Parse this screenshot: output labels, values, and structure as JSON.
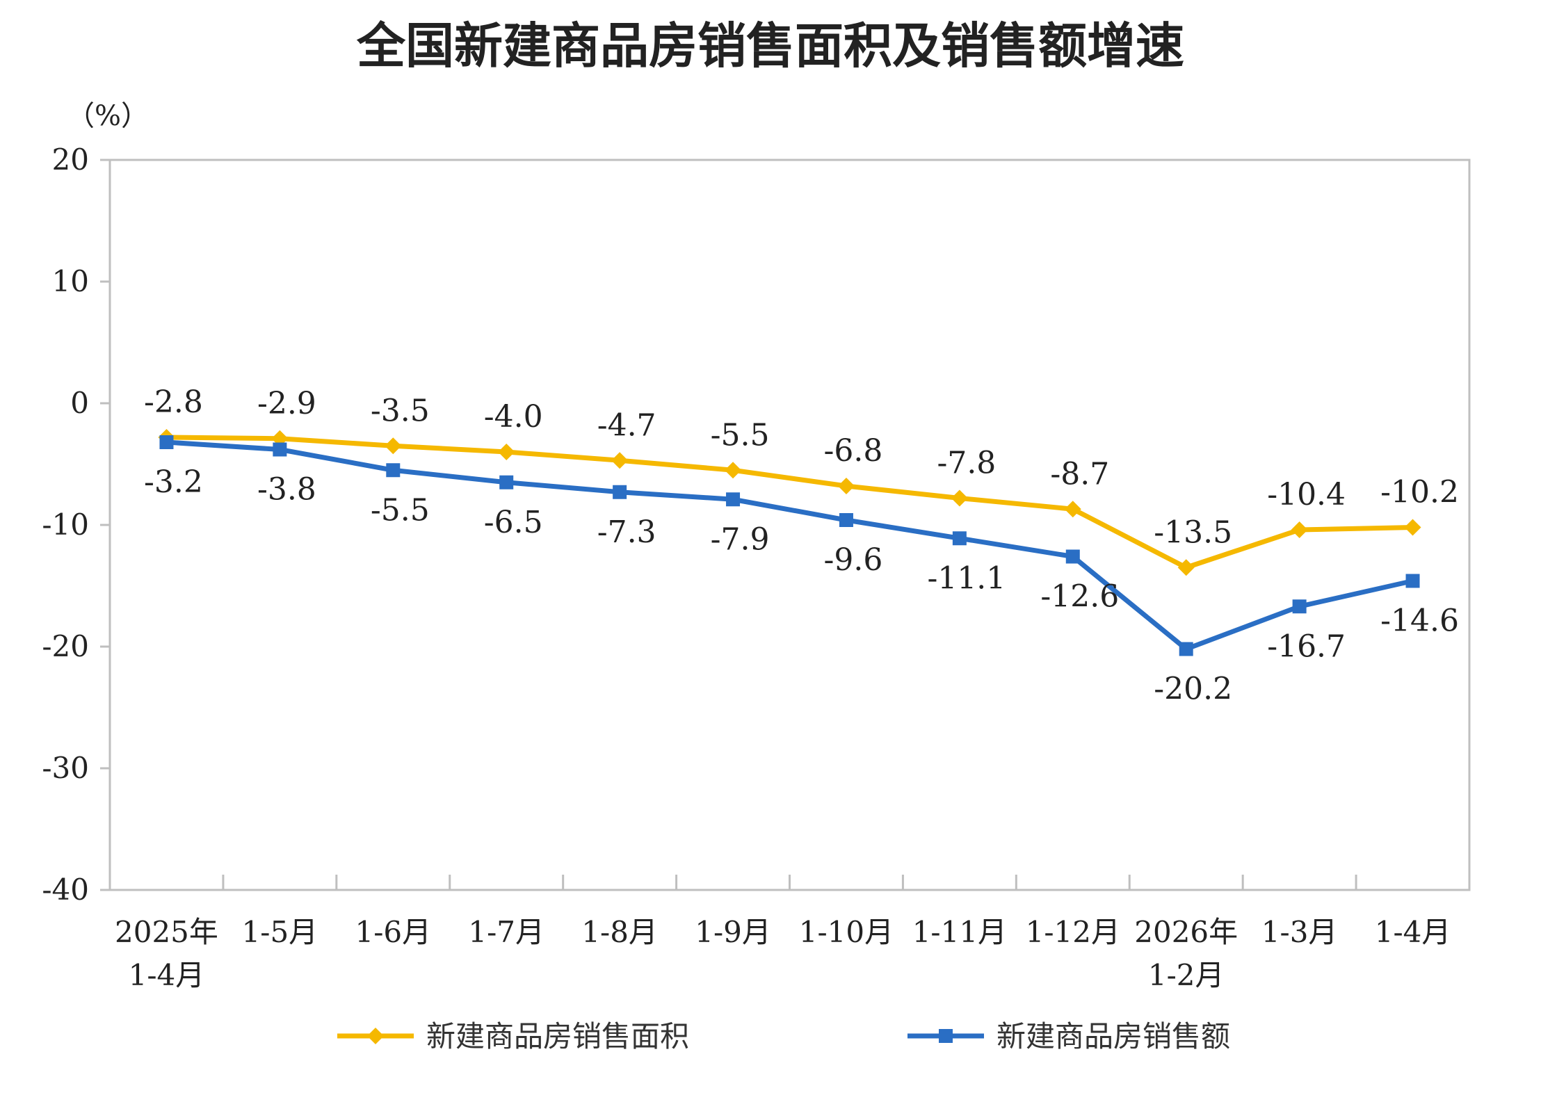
{
  "chart_data": {
    "type": "line",
    "title": "全国新建商品房销售面积及销售额增速",
    "ylabel": "（%）",
    "ylim": [
      -40,
      20
    ],
    "yticks": [
      20,
      10,
      0,
      -10,
      -20,
      -30,
      -40
    ],
    "grid": false,
    "legend_position": "bottom",
    "categories": [
      [
        "2025年",
        "1-4月"
      ],
      [
        "1-5月"
      ],
      [
        "1-6月"
      ],
      [
        "1-7月"
      ],
      [
        "1-8月"
      ],
      [
        "1-9月"
      ],
      [
        "1-10月"
      ],
      [
        "1-11月"
      ],
      [
        "1-12月"
      ],
      [
        "2026年",
        "1-2月"
      ],
      [
        "1-3月"
      ],
      [
        "1-4月"
      ]
    ],
    "series": [
      {
        "name": "新建商品房销售面积",
        "color": "#F5B800",
        "marker": "diamond",
        "values": [
          -2.8,
          -2.9,
          -3.5,
          -4.0,
          -4.7,
          -5.5,
          -6.8,
          -7.8,
          -8.7,
          -13.5,
          -10.4,
          -10.2
        ],
        "labels": [
          "-2.8",
          "-2.9",
          "-3.5",
          "-4.0",
          "-4.7",
          "-5.5",
          "-6.8",
          "-7.8",
          "-8.7",
          "-13.5",
          "-10.4",
          "-10.2"
        ],
        "label_side": "above"
      },
      {
        "name": "新建商品房销售额",
        "color": "#2A6EC4",
        "marker": "square",
        "values": [
          -3.2,
          -3.8,
          -5.5,
          -6.5,
          -7.3,
          -7.9,
          -9.6,
          -11.1,
          -12.6,
          -20.2,
          -16.7,
          -14.6
        ],
        "labels": [
          "-3.2",
          "-3.8",
          "-5.5",
          "-6.5",
          "-7.3",
          "-7.9",
          "-9.6",
          "-11.1",
          "-12.6",
          "-20.2",
          "-16.7",
          "-14.6"
        ],
        "label_side": "below"
      }
    ]
  }
}
